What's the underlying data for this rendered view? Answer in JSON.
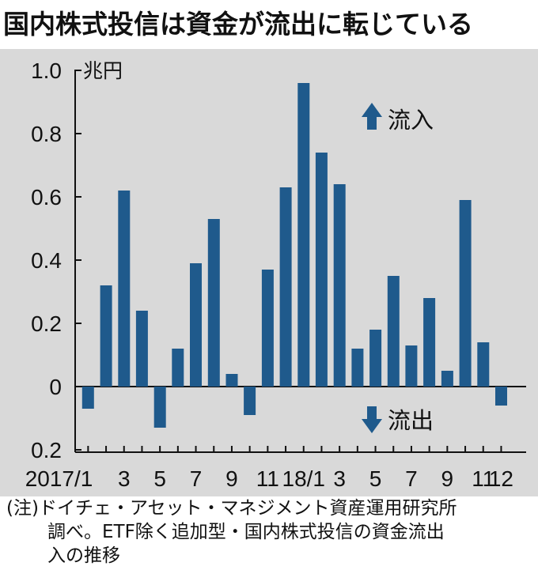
{
  "title": "国内株式投信は資金が流出に転じている",
  "note": {
    "line1": "(注)ドイチェ・アセット・マネジメント資産運用研究所",
    "line2": "調べ。ETF除く追加型・国内株式投信の資金流出",
    "line3": "入の推移"
  },
  "chart_data": {
    "type": "bar",
    "unit": "兆円",
    "ylim": [
      -0.2,
      1.0
    ],
    "yticks": [
      1.0,
      0.8,
      0.6,
      0.4,
      0.2,
      0,
      -0.2
    ],
    "ytick_labels": [
      "1.0",
      "0.8",
      "0.6",
      "0.4",
      "0.2",
      "0",
      "0.2"
    ],
    "x_labels": [
      "2017/1",
      "3",
      "5",
      "7",
      "9",
      "11",
      "18/1",
      "3",
      "5",
      "7",
      "9",
      "11",
      "12"
    ],
    "x_label_months": [
      "2017/1",
      "2017/3",
      "2017/5",
      "2017/7",
      "2017/9",
      "2017/11",
      "2018/1",
      "2018/3",
      "2018/5",
      "2018/7",
      "2018/9",
      "2018/11",
      "2018/12"
    ],
    "categories": [
      "2017/1",
      "2017/2",
      "2017/3",
      "2017/4",
      "2017/5",
      "2017/6",
      "2017/7",
      "2017/8",
      "2017/9",
      "2017/10",
      "2017/11",
      "2017/12",
      "2018/1",
      "2018/2",
      "2018/3",
      "2018/4",
      "2018/5",
      "2018/6",
      "2018/7",
      "2018/8",
      "2018/9",
      "2018/10",
      "2018/11",
      "2018/12"
    ],
    "values": [
      -0.07,
      0.32,
      0.62,
      0.24,
      -0.13,
      0.12,
      0.39,
      0.53,
      0.04,
      -0.09,
      0.37,
      0.63,
      0.96,
      0.74,
      0.64,
      0.12,
      0.18,
      0.35,
      0.13,
      0.28,
      0.05,
      0.59,
      0.14,
      -0.06
    ],
    "annotations": {
      "inflow": "流入",
      "outflow": "流出"
    },
    "bar_color": "#1f5a8c",
    "background_color": "#d9d9d9",
    "grid": false
  }
}
